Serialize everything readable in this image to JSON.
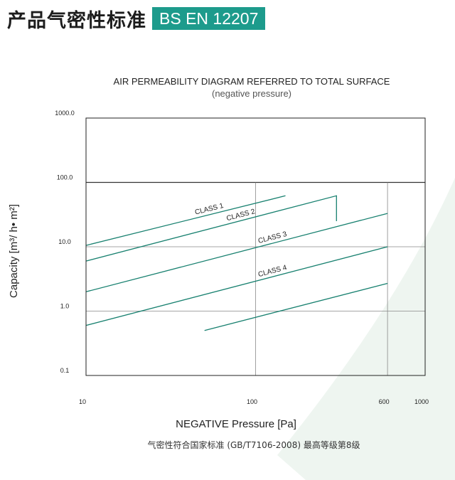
{
  "header": {
    "title": "产品气密性标准",
    "badge": "BS EN 12207"
  },
  "colors": {
    "badge": "#1d9b8c",
    "line": "#17806f",
    "grid": "#888888",
    "frame": "#222222",
    "watermark": "#eef5f0"
  },
  "chart_data": {
    "type": "line",
    "title": "AIR PERMEABILITY DIAGRAM REFERRED TO TOTAL SURFACE",
    "subtitle": "(negative pressure)",
    "xlabel": "NEGATIVE Pressure [Pa]",
    "ylabel": "Capacity [m³/ h• m²]",
    "x_scale": "log",
    "y_scale": "log",
    "xlim": [
      10,
      1000
    ],
    "ylim": [
      0.1,
      1000
    ],
    "x_ticks": [
      "10",
      "100",
      "600",
      "1000"
    ],
    "x_tick_values": [
      10,
      100,
      600,
      1000
    ],
    "y_ticks": [
      "0.1",
      "1.0",
      "10.0",
      "100.0",
      "1000.0"
    ],
    "y_tick_values": [
      0.1,
      1,
      10,
      100,
      1000
    ],
    "grid": true,
    "series": [
      {
        "name": "CLASS 1",
        "x": [
          10,
          150
        ],
        "y": [
          10.5,
          62
        ]
      },
      {
        "name": "CLASS 2",
        "x": [
          10,
          300,
          300
        ],
        "y": [
          6,
          62,
          25
        ]
      },
      {
        "name": "CLASS 3",
        "x": [
          10,
          600
        ],
        "y": [
          2,
          33
        ]
      },
      {
        "name": "CLASS 4",
        "x": [
          10,
          600
        ],
        "y": [
          0.6,
          10
        ]
      },
      {
        "name": "",
        "x": [
          50,
          600
        ],
        "y": [
          0.5,
          2.7
        ]
      }
    ]
  },
  "footnote": "气密性符合国家标准 (GB/T7106-2008) 最高等级第8级"
}
